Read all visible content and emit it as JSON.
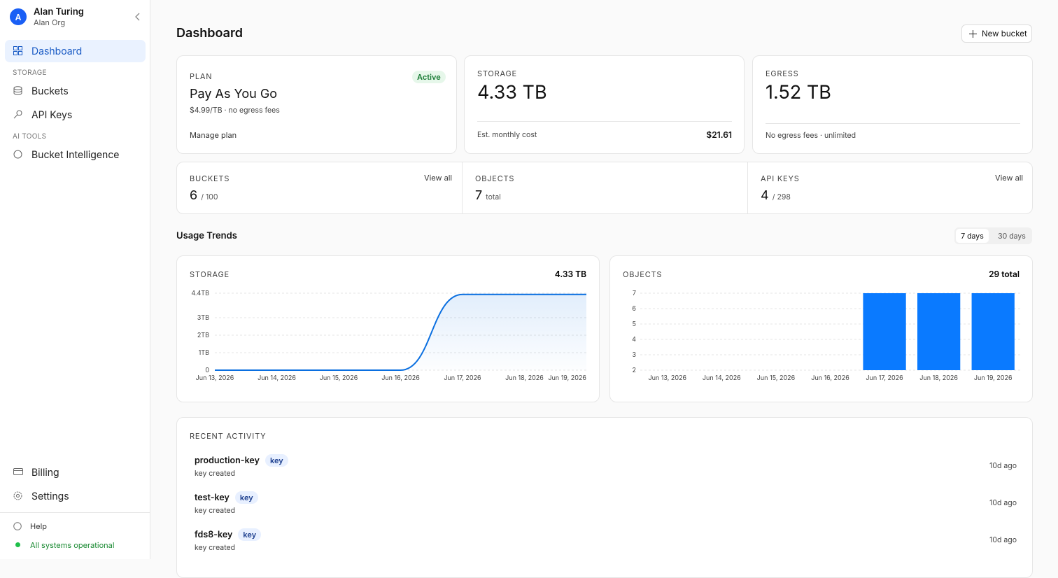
{
  "sidebar": {
    "avatar": "A",
    "name": "Alan Turing",
    "org": "Alan Org",
    "items": [
      "Dashboard"
    ],
    "storage_heading": "STORAGE",
    "storage_items": [
      "Buckets",
      "API Keys"
    ],
    "ai_heading": "AI TOOLS",
    "ai_items": [
      "Bucket Intelligence"
    ],
    "bottom_items": [
      "Billing",
      "Settings"
    ],
    "help": "Help",
    "status": "All systems operational"
  },
  "header": {
    "title": "Dashboard",
    "button": "New bucket"
  },
  "plan_card": {
    "label": "PLAN",
    "badge": "Active",
    "name": "Pay As You Go",
    "price": "$4.99/TB · no egress fees",
    "link": "Manage plan"
  },
  "storage_card": {
    "label": "STORAGE",
    "value": "4.33 TB",
    "cost_label": "Est. monthly cost",
    "cost": "$21.61"
  },
  "egress_card": {
    "label": "EGRESS",
    "value": "1.52 TB",
    "note": "No egress fees · unlimited"
  },
  "stats": [
    {
      "label": "BUCKETS",
      "value": "6",
      "suffix": "/ 100",
      "link": "View all"
    },
    {
      "label": "OBJECTS",
      "value": "7",
      "suffix": "total"
    },
    {
      "label": "API KEYS",
      "value": "4",
      "suffix": "/ 298",
      "link": "View all"
    }
  ],
  "trends": {
    "title": "Usage Trends",
    "ranges": [
      "7 days",
      "30 days"
    ]
  },
  "chart_data": [
    {
      "type": "line",
      "title": "STORAGE",
      "summary": "4.33 TB",
      "categories": [
        "Jun 13, 2026",
        "Jun 14, 2026",
        "Jun 15, 2026",
        "Jun 16, 2026",
        "Jun 17, 2026",
        "Jun 18, 2026",
        "Jun 19, 2026"
      ],
      "values": [
        0,
        0,
        0,
        0,
        4.33,
        4.33,
        4.33
      ],
      "color": "#0a6fe0",
      "ylim": [
        0,
        4.4
      ],
      "yticks": [
        0,
        {
          "value": 1,
          "label": "1TB"
        },
        {
          "value": 2,
          "label": "2TB"
        },
        {
          "value": 3,
          "label": "3TB"
        },
        {
          "value": 4.4,
          "label": "4.4TB"
        }
      ],
      "grid": true
    },
    {
      "type": "bar",
      "title": "OBJECTS",
      "summary": "29 total",
      "categories": [
        "Jun 13, 2026",
        "Jun 14, 2026",
        "Jun 15, 2026",
        "Jun 16, 2026",
        "Jun 17, 2026",
        "Jun 18, 2026",
        "Jun 19, 2026"
      ],
      "values": [
        2,
        2,
        2,
        2,
        7,
        7,
        7
      ],
      "color": "#0a7aff",
      "ylim": [
        2,
        7
      ],
      "yticks": [
        2,
        3,
        4,
        5,
        6,
        7
      ],
      "grid": true
    }
  ],
  "activity": {
    "title": "RECENT ACTIVITY",
    "items": [
      {
        "name": "production-key",
        "tag": "key",
        "detail": "key created",
        "time": "10d ago"
      },
      {
        "name": "test-key",
        "tag": "key",
        "detail": "key created",
        "time": "10d ago"
      },
      {
        "name": "fds8-key",
        "tag": "key",
        "detail": "key created",
        "time": "10d ago"
      }
    ]
  }
}
